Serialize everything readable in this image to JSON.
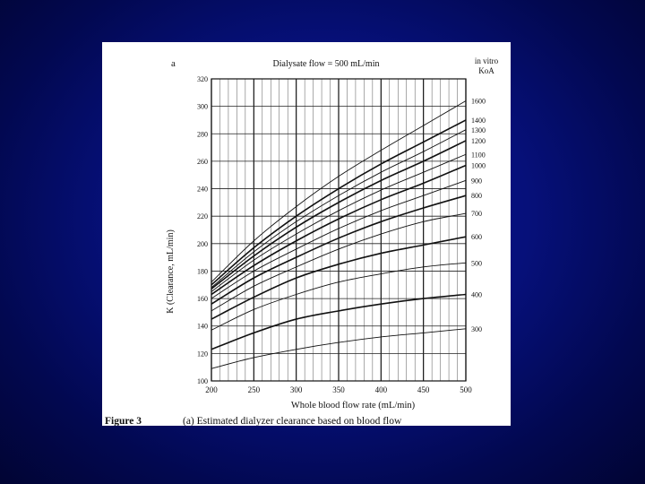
{
  "chart_data": {
    "type": "line",
    "panel_label": "a",
    "title": "Dialysate flow = 500 mL/min",
    "xlabel": "Whole blood flow rate (mL/min)",
    "ylabel": "K (Clearance, mL/min)",
    "xlim": [
      200,
      500
    ],
    "ylim": [
      100,
      320
    ],
    "x_ticks": [
      "200",
      "250",
      "300",
      "350",
      "400",
      "450",
      "500"
    ],
    "y_ticks": [
      "100",
      "120",
      "140",
      "160",
      "180",
      "200",
      "220",
      "240",
      "260",
      "280",
      "300",
      "320"
    ],
    "grid": true,
    "legend_title": [
      "in vitro",
      "KoA"
    ],
    "x": [
      200,
      250,
      300,
      350,
      400,
      450,
      500
    ],
    "series": [
      {
        "name": "300",
        "values": [
          109,
          117,
          123,
          128,
          132,
          135,
          138
        ]
      },
      {
        "name": "400",
        "values": [
          123,
          135,
          145,
          151,
          156,
          160,
          163
        ]
      },
      {
        "name": "500",
        "values": [
          137,
          152,
          163,
          172,
          178,
          183,
          186
        ]
      },
      {
        "name": "600",
        "values": [
          145,
          161,
          175,
          185,
          193,
          199,
          205
        ]
      },
      {
        "name": "700",
        "values": [
          151,
          169,
          183,
          196,
          207,
          216,
          222
        ]
      },
      {
        "name": "800",
        "values": [
          156,
          175,
          190,
          204,
          216,
          226,
          235
        ]
      },
      {
        "name": "900",
        "values": [
          160,
          180,
          196,
          211,
          224,
          235,
          246
        ]
      },
      {
        "name": "1000",
        "values": [
          163,
          184,
          202,
          218,
          232,
          244,
          257
        ]
      },
      {
        "name": "1100",
        "values": [
          165,
          188,
          207,
          224,
          239,
          252,
          265
        ]
      },
      {
        "name": "1200",
        "values": [
          167,
          191,
          212,
          230,
          246,
          260,
          275
        ]
      },
      {
        "name": "1300",
        "values": [
          168,
          194,
          216,
          235,
          252,
          267,
          283
        ]
      },
      {
        "name": "1400",
        "values": [
          170,
          197,
          220,
          240,
          258,
          274,
          290
        ]
      },
      {
        "name": "1600",
        "values": [
          172,
          202,
          227,
          249,
          268,
          286,
          304
        ]
      }
    ],
    "caption_label": "Figure 3",
    "caption_text": "(a) Estimated dialyzer clearance based on blood flow"
  }
}
